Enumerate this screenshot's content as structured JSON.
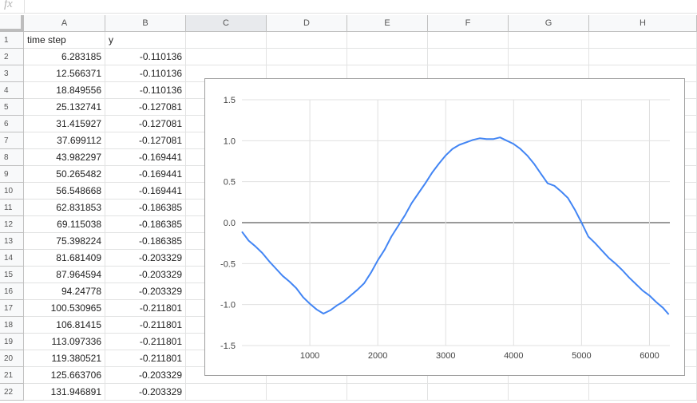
{
  "formula_bar": {
    "label": "fx",
    "value": ""
  },
  "columns": [
    "A",
    "B",
    "C",
    "D",
    "E",
    "F",
    "G",
    "H"
  ],
  "rows": [
    [
      "time step",
      "y"
    ],
    [
      "6.283185",
      "-0.110136"
    ],
    [
      "12.566371",
      "-0.110136"
    ],
    [
      "18.849556",
      "-0.110136"
    ],
    [
      "25.132741",
      "-0.127081"
    ],
    [
      "31.415927",
      "-0.127081"
    ],
    [
      "37.699112",
      "-0.127081"
    ],
    [
      "43.982297",
      "-0.169441"
    ],
    [
      "50.265482",
      "-0.169441"
    ],
    [
      "56.548668",
      "-0.169441"
    ],
    [
      "62.831853",
      "-0.186385"
    ],
    [
      "69.115038",
      "-0.186385"
    ],
    [
      "75.398224",
      "-0.186385"
    ],
    [
      "81.681409",
      "-0.203329"
    ],
    [
      "87.964594",
      "-0.203329"
    ],
    [
      "94.24778",
      "-0.203329"
    ],
    [
      "100.530965",
      "-0.211801"
    ],
    [
      "106.81415",
      "-0.211801"
    ],
    [
      "113.097336",
      "-0.211801"
    ],
    [
      "119.380521",
      "-0.211801"
    ],
    [
      "125.663706",
      "-0.203329"
    ],
    [
      "131.946891",
      "-0.203329"
    ]
  ],
  "chart_data": {
    "type": "line",
    "title": "",
    "xlabel": "",
    "ylabel": "",
    "xlim": [
      0,
      6300
    ],
    "ylim": [
      -1.5,
      1.5
    ],
    "xticks": [
      1000,
      2000,
      3000,
      4000,
      5000,
      6000
    ],
    "yticks": [
      1.5,
      1.0,
      0.5,
      0.0,
      -0.5,
      -1.0,
      -1.5
    ],
    "grid": true,
    "legend": "none",
    "series": [
      {
        "color": "#4285f4",
        "x": [
          0,
          100,
          200,
          300,
          400,
          500,
          600,
          700,
          800,
          900,
          1000,
          1100,
          1200,
          1300,
          1400,
          1500,
          1600,
          1700,
          1800,
          1900,
          2000,
          2100,
          2200,
          2300,
          2400,
          2500,
          2600,
          2700,
          2800,
          2900,
          3000,
          3100,
          3200,
          3300,
          3400,
          3500,
          3600,
          3700,
          3800,
          3900,
          4000,
          4100,
          4200,
          4300,
          4400,
          4500,
          4600,
          4700,
          4800,
          4900,
          5000,
          5100,
          5200,
          5300,
          5400,
          5500,
          5600,
          5700,
          5800,
          5900,
          6000,
          6100,
          6200,
          6283
        ],
        "values": [
          -0.11,
          -0.22,
          -0.29,
          -0.37,
          -0.47,
          -0.56,
          -0.65,
          -0.72,
          -0.8,
          -0.91,
          -0.99,
          -1.06,
          -1.11,
          -1.07,
          -1.01,
          -0.96,
          -0.89,
          -0.82,
          -0.74,
          -0.61,
          -0.46,
          -0.33,
          -0.17,
          -0.04,
          0.09,
          0.24,
          0.36,
          0.48,
          0.61,
          0.72,
          0.82,
          0.9,
          0.95,
          0.98,
          1.01,
          1.03,
          1.02,
          1.02,
          1.04,
          1.0,
          0.96,
          0.9,
          0.82,
          0.72,
          0.6,
          0.48,
          0.45,
          0.38,
          0.3,
          0.16,
          0.0,
          -0.17,
          -0.25,
          -0.34,
          -0.43,
          -0.5,
          -0.58,
          -0.67,
          -0.75,
          -0.83,
          -0.89,
          -0.97,
          -1.04,
          -1.12
        ]
      }
    ]
  }
}
